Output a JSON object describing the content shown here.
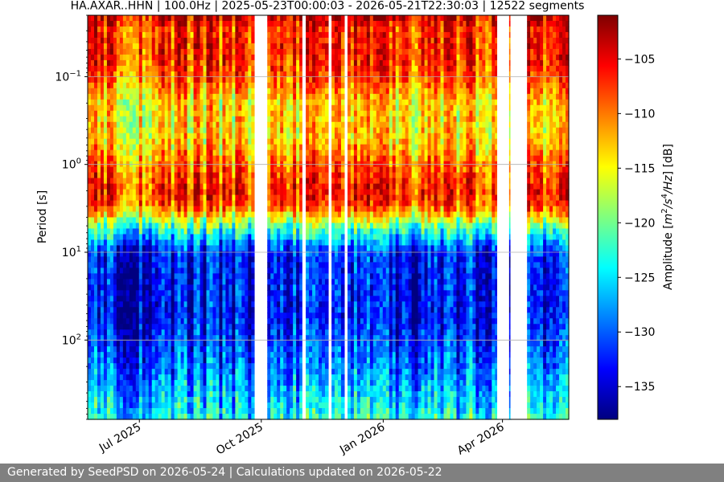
{
  "chart_data": {
    "type": "heatmap",
    "title": "HA.AXAR..HHN | 100.0Hz | 2025-05-23T00:00:03 - 2026-05-21T22:30:03 | 12522 segments",
    "xlabel": "",
    "ylabel": "Period [s]",
    "colorbar_label": "Amplitude [m²/s⁴/Hz] [dB]",
    "colorbar_label_parts": {
      "prefix": "Amplitude [",
      "m": "m",
      "sup2": "2",
      "slash1": "/s",
      "sup4": "4",
      "rest": "/Hz",
      "suffix": "] [dB]"
    },
    "colormap": "jet",
    "x_range": [
      "2025-05-23",
      "2026-05-21"
    ],
    "y_scale": "log",
    "y_inverted": true,
    "y_range": [
      0.02,
      800
    ],
    "color_range": [
      -138,
      -101
    ],
    "grid": true,
    "x_ticks": [
      {
        "date": "2025-07-01",
        "label": "Jul 2025"
      },
      {
        "date": "2025-10-01",
        "label": "Oct 2025"
      },
      {
        "date": "2026-01-01",
        "label": "Jan 2026"
      },
      {
        "date": "2026-04-01",
        "label": "Apr 2026"
      }
    ],
    "y_ticks": [
      {
        "value": 0.1,
        "base": "10",
        "exp": "−1"
      },
      {
        "value": 1,
        "base": "10",
        "exp": "0"
      },
      {
        "value": 10,
        "base": "10",
        "exp": "1"
      },
      {
        "value": 100,
        "base": "10",
        "exp": "2"
      }
    ],
    "colorbar_ticks": [
      {
        "value": -105,
        "label": "−105"
      },
      {
        "value": -110,
        "label": "−110"
      },
      {
        "value": -115,
        "label": "−115"
      },
      {
        "value": -120,
        "label": "−120"
      },
      {
        "value": -125,
        "label": "−125"
      },
      {
        "value": -130,
        "label": "−130"
      },
      {
        "value": -135,
        "label": "−135"
      }
    ],
    "data_gaps": [
      {
        "start": "2025-09-26",
        "end": "2025-10-05"
      },
      {
        "start": "2025-11-01",
        "end": "2025-11-03"
      },
      {
        "start": "2025-11-21",
        "end": "2025-11-23"
      },
      {
        "start": "2025-12-03",
        "end": "2025-12-05"
      },
      {
        "start": "2026-03-28",
        "end": "2026-04-06"
      },
      {
        "start": "2026-04-07",
        "end": "2026-04-19"
      }
    ],
    "amplitude_profile": [
      {
        "period": 0.02,
        "db": -104
      },
      {
        "period": 0.03,
        "db": -108
      },
      {
        "period": 0.05,
        "db": -107
      },
      {
        "period": 0.1,
        "db": -109
      },
      {
        "period": 0.2,
        "db": -114
      },
      {
        "period": 0.5,
        "db": -114
      },
      {
        "period": 1,
        "db": -110
      },
      {
        "period": 2,
        "db": -107
      },
      {
        "period": 3,
        "db": -109
      },
      {
        "period": 5,
        "db": -121
      },
      {
        "period": 10,
        "db": -133
      },
      {
        "period": 50,
        "db": -134
      },
      {
        "period": 200,
        "db": -130
      },
      {
        "period": 800,
        "db": -124
      }
    ]
  },
  "footer": {
    "text": "Generated by SeedPSD on 2026-05-24 | Calculations updated on 2026-05-22"
  }
}
